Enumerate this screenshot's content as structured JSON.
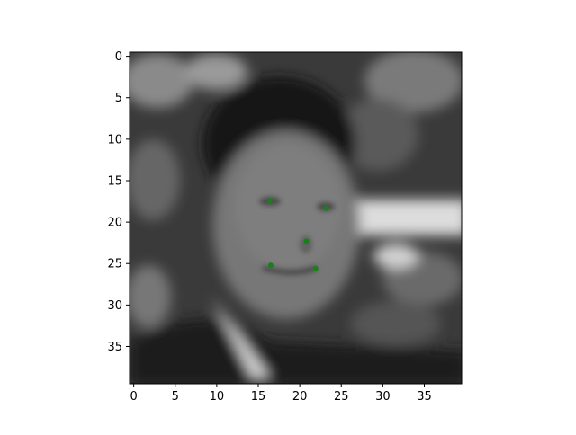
{
  "chart_data": {
    "type": "scatter",
    "title": "",
    "xlabel": "",
    "ylabel": "",
    "background": "grayscale face image (imshow)",
    "xlim": [
      -0.5,
      39.5
    ],
    "ylim": [
      39.5,
      -0.5
    ],
    "xticks": [
      0,
      5,
      10,
      15,
      20,
      25,
      30,
      35
    ],
    "yticks": [
      0,
      5,
      10,
      15,
      20,
      25,
      30,
      35
    ],
    "grid": false,
    "series": [
      {
        "marker_color": "#1a7f1a",
        "points": [
          {
            "x": 16.4,
            "y": 17.4
          },
          {
            "x": 23.2,
            "y": 18.3
          },
          {
            "x": 20.8,
            "y": 22.3
          },
          {
            "x": 16.5,
            "y": 25.2
          },
          {
            "x": 21.9,
            "y": 25.6
          }
        ]
      }
    ]
  }
}
